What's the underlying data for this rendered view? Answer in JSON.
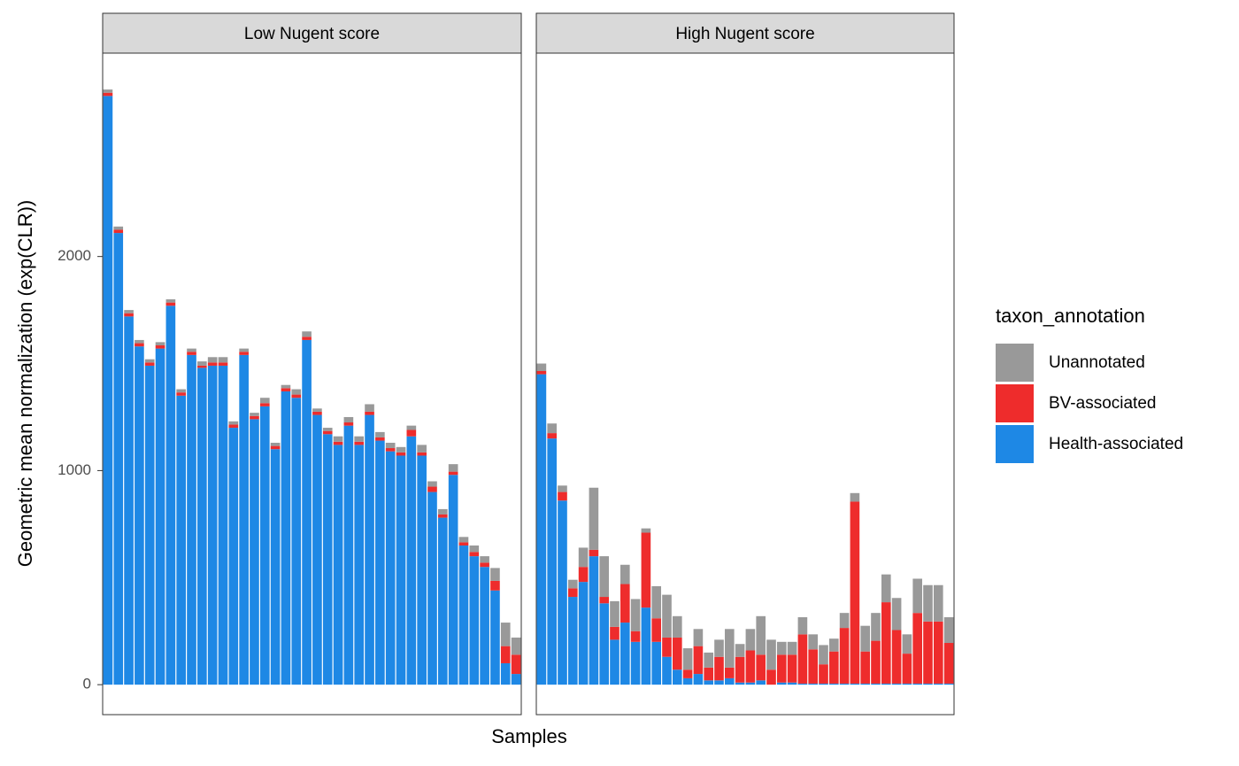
{
  "chart_data": {
    "type": "stacked_bar_facets",
    "ylabel": "Geometric mean normalization (exp(CLR))",
    "xlabel": "Samples",
    "legend_title": "taxon_annotation",
    "ylim": [
      -140,
      2950
    ],
    "yticks": [
      0,
      1000,
      2000
    ],
    "series": [
      {
        "name": "Health-associated",
        "color": "#1e88e5"
      },
      {
        "name": "BV-associated",
        "color": "#ee2c2c"
      },
      {
        "name": "Unannotated",
        "color": "#999999"
      }
    ],
    "panels": [
      {
        "title": "Low Nugent score",
        "values": [
          [
            2750,
            2110,
            1720,
            1580,
            1490,
            1570,
            1770,
            1350,
            1540,
            1480,
            1490,
            1490,
            1200,
            1540,
            1240,
            1300,
            1100,
            1370,
            1340,
            1610,
            1260,
            1170,
            1120,
            1210,
            1120,
            1260,
            1140,
            1090,
            1070,
            1160,
            1070,
            900,
            780,
            980,
            650,
            600,
            550,
            440,
            100,
            50
          ],
          [
            15,
            15,
            15,
            15,
            15,
            15,
            15,
            15,
            15,
            10,
            15,
            15,
            15,
            15,
            15,
            15,
            15,
            15,
            15,
            15,
            15,
            15,
            15,
            15,
            15,
            15,
            15,
            15,
            15,
            30,
            15,
            25,
            15,
            15,
            15,
            20,
            20,
            45,
            80,
            90
          ],
          [
            15,
            15,
            15,
            15,
            15,
            15,
            15,
            15,
            15,
            20,
            25,
            25,
            15,
            15,
            15,
            25,
            15,
            15,
            25,
            25,
            15,
            15,
            25,
            25,
            25,
            35,
            25,
            25,
            25,
            20,
            35,
            25,
            25,
            35,
            25,
            30,
            30,
            60,
            110,
            80
          ]
        ]
      },
      {
        "title": "High Nugent score",
        "values": [
          [
            1450,
            1150,
            860,
            410,
            480,
            600,
            380,
            210,
            290,
            200,
            360,
            200,
            130,
            70,
            30,
            50,
            20,
            20,
            30,
            10,
            10,
            20,
            0,
            10,
            10,
            5,
            5,
            5,
            5,
            5,
            5,
            5,
            5,
            5,
            5,
            5,
            5,
            5,
            5,
            5
          ],
          [
            15,
            25,
            40,
            40,
            70,
            30,
            30,
            60,
            180,
            50,
            350,
            110,
            90,
            150,
            40,
            130,
            60,
            110,
            50,
            120,
            150,
            120,
            70,
            130,
            130,
            230,
            160,
            90,
            150,
            260,
            850,
            150,
            200,
            380,
            250,
            140,
            330,
            290,
            290,
            190
          ],
          [
            35,
            45,
            30,
            40,
            90,
            290,
            190,
            120,
            90,
            150,
            20,
            150,
            200,
            100,
            100,
            80,
            70,
            80,
            180,
            60,
            100,
            180,
            140,
            60,
            60,
            80,
            70,
            90,
            60,
            70,
            40,
            120,
            130,
            130,
            150,
            90,
            160,
            170,
            170,
            120
          ]
        ]
      }
    ]
  }
}
